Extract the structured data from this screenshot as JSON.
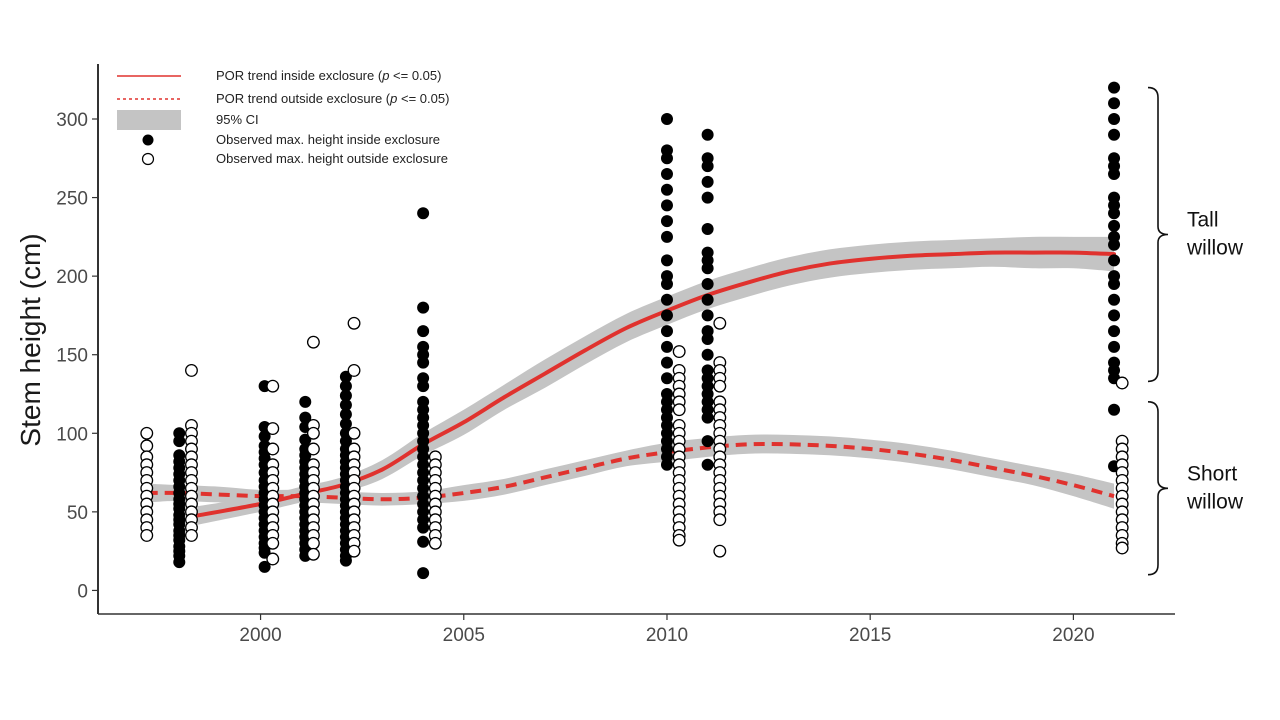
{
  "chart_data": {
    "type": "scatter",
    "ylabel": "Stem height (cm)",
    "xlabel": "",
    "xlim": [
      1996.0,
      2022.5
    ],
    "ylim": [
      -15,
      335
    ],
    "x_ticks": [
      2000,
      2005,
      2010,
      2015,
      2020
    ],
    "y_ticks": [
      0,
      50,
      100,
      150,
      200,
      250,
      300
    ],
    "grid": false,
    "legend_position": "top-left",
    "legend": [
      {
        "kind": "solid-line",
        "pre": "POR trend inside exclosure (",
        "p": "p",
        "post": " <= 0.05)"
      },
      {
        "kind": "dashed-line",
        "pre": "POR trend outside exclosure (",
        "p": "p",
        "post": " <= 0.05)"
      },
      {
        "kind": "ci-band",
        "text": "95% CI"
      },
      {
        "kind": "filled-point",
        "text": "Observed max. height inside exclosure"
      },
      {
        "kind": "open-point",
        "text": "Observed max. height outside exclosure"
      }
    ],
    "colors": {
      "trend": "#e0322e",
      "ci": "#c4c4c4",
      "point": "#000000",
      "axis": "#333333"
    },
    "trend_inside": {
      "x": [
        1998.3,
        2000,
        2001,
        2002,
        2003,
        2004,
        2005,
        2006,
        2007,
        2008,
        2009,
        2010,
        2011,
        2012,
        2013,
        2014,
        2015,
        2016,
        2017,
        2018,
        2019,
        2020,
        2021
      ],
      "y": [
        47,
        55,
        61,
        67,
        77,
        93,
        107,
        123,
        138,
        153,
        167,
        178,
        188,
        196,
        203,
        208,
        211,
        213,
        214,
        215,
        215,
        215,
        214
      ],
      "ci_half_width": [
        6,
        5,
        5,
        5,
        6,
        7,
        8,
        8,
        9,
        9,
        9,
        9,
        9,
        9,
        9,
        9,
        9,
        9,
        9,
        9,
        10,
        10,
        11
      ]
    },
    "trend_outside": {
      "x": [
        1997.2,
        1998,
        1999,
        2000,
        2001,
        2002,
        2003,
        2004,
        2005,
        2006,
        2007,
        2008,
        2009,
        2010,
        2011,
        2012,
        2013,
        2014,
        2015,
        2016,
        2017,
        2018,
        2019,
        2020,
        2021
      ],
      "y": [
        62,
        62,
        61,
        60,
        60,
        59,
        58,
        59,
        62,
        66,
        72,
        78,
        84,
        88,
        91,
        93,
        93,
        92,
        90,
        87,
        83,
        78,
        73,
        67,
        60
      ],
      "ci_half_width": [
        6,
        5,
        5,
        4,
        4,
        4,
        4,
        4,
        5,
        5,
        5,
        5,
        5,
        6,
        6,
        6,
        6,
        6,
        6,
        6,
        6,
        6,
        6,
        7,
        8
      ]
    },
    "points_inside": [
      {
        "x": 1998.0,
        "y": [
          100,
          95,
          86,
          82,
          78,
          74,
          70,
          66,
          62,
          58,
          55,
          52,
          48,
          45,
          42,
          38,
          35,
          32,
          28,
          25,
          22,
          18
        ]
      },
      {
        "x": 2000.1,
        "y": [
          130,
          104,
          98,
          92,
          88,
          84,
          80,
          75,
          70,
          66,
          62,
          58,
          54,
          50,
          46,
          42,
          38,
          34,
          30,
          27,
          24,
          15
        ]
      },
      {
        "x": 2001.1,
        "y": [
          120,
          110,
          104,
          96,
          90,
          86,
          82,
          78,
          74,
          70,
          66,
          62,
          58,
          54,
          50,
          46,
          42,
          38,
          34,
          30,
          26,
          22
        ]
      },
      {
        "x": 2002.1,
        "y": [
          136,
          130,
          124,
          118,
          112,
          106,
          100,
          95,
          90,
          86,
          82,
          78,
          74,
          70,
          66,
          62,
          58,
          54,
          50,
          46,
          42,
          38,
          34,
          30,
          26,
          22,
          19
        ]
      },
      {
        "x": 2004.0,
        "y": [
          240,
          180,
          165,
          155,
          150,
          145,
          135,
          130,
          120,
          115,
          110,
          105,
          100,
          95,
          90,
          85,
          80,
          75,
          70,
          65,
          60,
          55,
          50,
          45,
          40,
          31,
          11
        ]
      },
      {
        "x": 2010.0,
        "y": [
          300,
          280,
          275,
          265,
          255,
          245,
          235,
          225,
          210,
          200,
          195,
          185,
          175,
          165,
          155,
          145,
          135,
          125,
          120,
          115,
          110,
          105,
          100,
          95,
          90,
          85,
          80
        ]
      },
      {
        "x": 2011.0,
        "y": [
          290,
          275,
          270,
          260,
          250,
          230,
          215,
          210,
          205,
          195,
          185,
          175,
          165,
          160,
          150,
          140,
          135,
          130,
          125,
          120,
          115,
          110,
          95,
          80
        ]
      },
      {
        "x": 2021.0,
        "y": [
          320,
          310,
          300,
          290,
          275,
          270,
          265,
          250,
          245,
          240,
          232,
          225,
          220,
          210,
          200,
          195,
          185,
          175,
          165,
          155,
          145,
          140,
          135,
          115,
          79
        ]
      }
    ],
    "points_outside": [
      {
        "x": 1997.2,
        "y": [
          100,
          92,
          85,
          80,
          75,
          70,
          65,
          60,
          55,
          50,
          45,
          40,
          35
        ]
      },
      {
        "x": 1998.3,
        "y": [
          140,
          105,
          100,
          95,
          90,
          85,
          80,
          75,
          70,
          65,
          60,
          55,
          50,
          45,
          40,
          35
        ]
      },
      {
        "x": 2000.3,
        "y": [
          130,
          103,
          90,
          80,
          75,
          70,
          65,
          60,
          55,
          50,
          45,
          40,
          35,
          30,
          20
        ]
      },
      {
        "x": 2001.3,
        "y": [
          158,
          105,
          100,
          90,
          80,
          75,
          70,
          65,
          60,
          55,
          50,
          45,
          40,
          35,
          30,
          23
        ]
      },
      {
        "x": 2002.3,
        "y": [
          170,
          140,
          100,
          90,
          85,
          80,
          75,
          70,
          65,
          60,
          55,
          50,
          45,
          40,
          35,
          30,
          25
        ]
      },
      {
        "x": 2004.3,
        "y": [
          85,
          80,
          75,
          70,
          65,
          60,
          55,
          50,
          45,
          40,
          35,
          30
        ]
      },
      {
        "x": 2010.3,
        "y": [
          152,
          140,
          135,
          130,
          125,
          120,
          115,
          105,
          100,
          95,
          90,
          85,
          80,
          75,
          70,
          65,
          60,
          55,
          50,
          45,
          40,
          35,
          32
        ]
      },
      {
        "x": 2011.3,
        "y": [
          170,
          145,
          140,
          135,
          130,
          120,
          115,
          110,
          105,
          100,
          95,
          90,
          85,
          80,
          75,
          70,
          65,
          60,
          55,
          50,
          45,
          25
        ]
      },
      {
        "x": 2021.2,
        "y": [
          132,
          95,
          90,
          85,
          80,
          75,
          70,
          65,
          60,
          55,
          50,
          45,
          40,
          35,
          30,
          27
        ]
      }
    ],
    "brackets": [
      {
        "label_line1": "Tall",
        "label_line2": "willow",
        "y_top": 320,
        "y_bottom": 133
      },
      {
        "label_line1": "Short",
        "label_line2": "willow",
        "y_top": 120,
        "y_bottom": 10
      }
    ]
  }
}
